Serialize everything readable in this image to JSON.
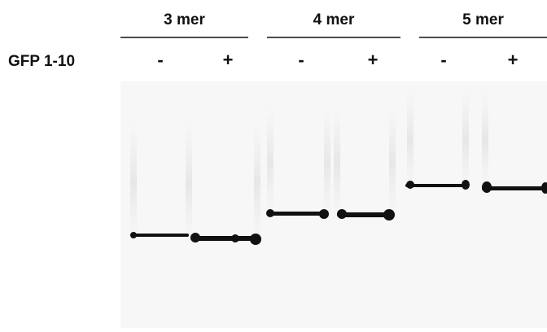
{
  "row_label": "GFP 1-10",
  "groups": [
    {
      "label": "3 mer",
      "lanes": [
        "-",
        "+"
      ]
    },
    {
      "label": "4 mer",
      "lanes": [
        "-",
        "+"
      ]
    },
    {
      "label": "5 mer",
      "lanes": [
        "-",
        "+"
      ]
    }
  ]
}
